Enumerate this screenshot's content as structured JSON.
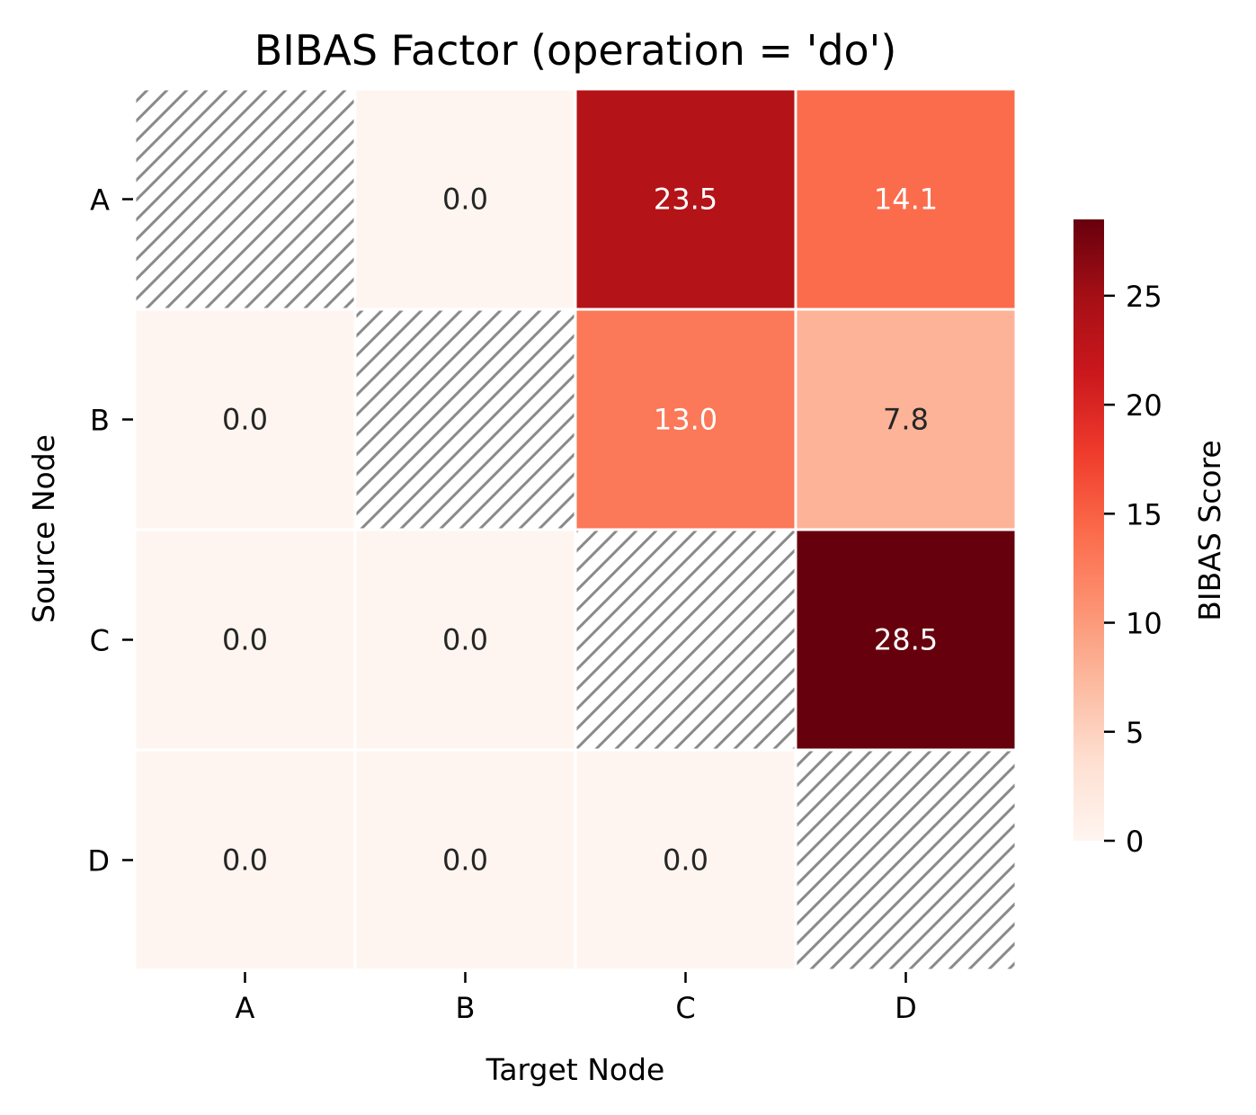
{
  "chart_data": {
    "type": "heatmap",
    "title": "BIBAS Factor (operation = 'do')",
    "xlabel": "Target Node",
    "ylabel": "Source Node",
    "x_categories": [
      "A",
      "B",
      "C",
      "D"
    ],
    "y_categories": [
      "A",
      "B",
      "C",
      "D"
    ],
    "values": [
      [
        null,
        0.0,
        23.5,
        14.1
      ],
      [
        0.0,
        null,
        13.0,
        7.8
      ],
      [
        0.0,
        0.0,
        null,
        28.5
      ],
      [
        0.0,
        0.0,
        0.0,
        null
      ]
    ],
    "cell_labels": [
      [
        "",
        "0.0",
        "23.5",
        "14.1"
      ],
      [
        "0.0",
        "",
        "13.0",
        "7.8"
      ],
      [
        "0.0",
        "0.0",
        "",
        "28.5"
      ],
      [
        "0.0",
        "0.0",
        "0.0",
        ""
      ]
    ],
    "masked_cells": "diagonal (hatched)",
    "colormap": "Reds",
    "vmin": 0,
    "vmax": 28.5,
    "colorbar": {
      "label": "BIBAS Score",
      "ticks": [
        0,
        5,
        10,
        15,
        20,
        25
      ],
      "tick_labels": [
        "0",
        "5",
        "10",
        "15",
        "20",
        "25"
      ]
    },
    "grid": false,
    "colors": {
      "hatch": "#8a8a8a",
      "cell_border": "#ffffff",
      "text_dark": "#262626",
      "text_light": "#ffffff"
    }
  }
}
